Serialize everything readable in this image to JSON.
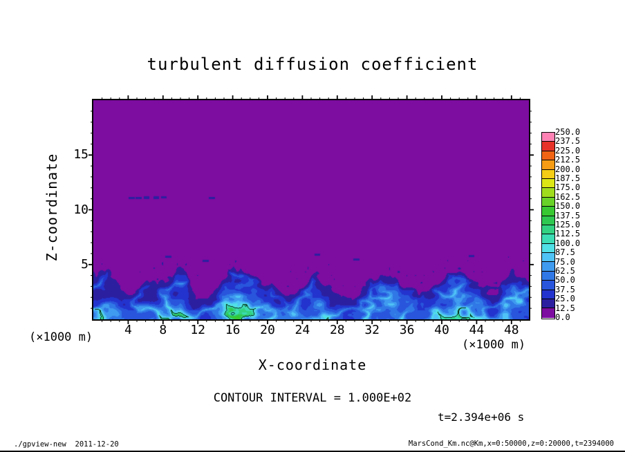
{
  "page": {
    "background": "#ffffff",
    "footer_left": "./gpview-new  2011-12-20",
    "footer_right": "MarsCond_Km.nc@Km,x=0:50000,z=0:20000,t=2394000"
  },
  "chart_data": {
    "type": "heatmap",
    "title": "turbulent diffusion coefficient",
    "xlabel": "X-coordinate",
    "ylabel": "Z-coordinate",
    "x_unit": "(×1000 m)",
    "z_unit": "(×1000 m)",
    "x_range": [
      0,
      50
    ],
    "z_range": [
      0,
      20
    ],
    "x_major_ticks": [
      4,
      8,
      12,
      16,
      20,
      24,
      28,
      32,
      36,
      40,
      44,
      48
    ],
    "z_major_ticks": [
      5,
      10,
      15
    ],
    "minor_tick_step": 1,
    "grid": false,
    "contour_interval": 100.0,
    "contour_interval_label": "CONTOUR INTERVAL = 1.000E+02",
    "time_label": "t=2.394e+06 s",
    "colorbar": {
      "position": "right",
      "levels": [
        0.0,
        12.5,
        25.0,
        37.5,
        50.0,
        62.5,
        75.0,
        87.5,
        100.0,
        112.5,
        125.0,
        137.5,
        150.0,
        162.5,
        175.0,
        187.5,
        200.0,
        212.5,
        225.0,
        237.5,
        250.0
      ],
      "tick_labels": [
        "250.0",
        "237.5",
        "225.0",
        "212.5",
        "200.0",
        "187.5",
        "175.0",
        "162.5",
        "150.0",
        "137.5",
        "125.0",
        "112.5",
        "100.0",
        "87.5",
        "75.0",
        "62.5",
        "50.0",
        "37.5",
        "25.0",
        "12.5",
        "0.0"
      ],
      "colors_low_to_high": [
        "#7d0ca0",
        "#2b1fa0",
        "#2333cd",
        "#2855dc",
        "#3078e6",
        "#3f9bef",
        "#4fc3f5",
        "#50e0e6",
        "#3cdcb4",
        "#32d282",
        "#2ec850",
        "#37c832",
        "#69d228",
        "#a0dc1e",
        "#dce614",
        "#f5cd14",
        "#f59b14",
        "#f06414",
        "#e63228",
        "#ff82b4"
      ]
    },
    "field": {
      "description": "Convective boundary-layer turbulence: diffusion coefficient ~0 (purple, 0-12.5 band) everywhere above a wavy boundary at z≈3-5 km; below the boundary, turbulent plumes with values mostly 25-110 (navy/blue body, cyan filament arcs, small green cores above 100 outlined by the 100-contour); a few isolated small specks near z≈11 km around x≈4-8 km and just above the layer top near z≈5-6 km.",
      "max_value": 138,
      "boundary_height_profile_km": {
        "x_step_km": 2,
        "values": [
          4.3,
          4.6,
          3.0,
          3.4,
          4.0,
          4.7,
          3.2,
          3.8,
          4.9,
          4.6,
          3.3,
          2.8,
          3.7,
          4.5,
          3.4,
          2.9,
          3.8,
          4.5,
          3.2,
          2.8,
          4.1,
          4.7,
          3.4,
          3.0,
          4.5
        ]
      },
      "plume_intensity_profile": {
        "x_step_km": 2,
        "values": [
          0.78,
          0.86,
          0.55,
          0.62,
          0.72,
          0.9,
          0.52,
          0.66,
          1.0,
          0.92,
          0.6,
          0.5,
          0.7,
          0.86,
          0.56,
          0.52,
          0.72,
          0.85,
          0.55,
          0.5,
          0.76,
          0.9,
          0.62,
          0.56,
          0.86
        ]
      },
      "specks": [
        {
          "x": 4.4,
          "z": 11.05
        },
        {
          "x": 5.2,
          "z": 11.05
        },
        {
          "x": 6.1,
          "z": 11.1
        },
        {
          "x": 7.2,
          "z": 11.1
        },
        {
          "x": 8.1,
          "z": 11.15
        },
        {
          "x": 13.6,
          "z": 11.05
        },
        {
          "x": 8.6,
          "z": 5.7
        },
        {
          "x": 12.9,
          "z": 5.35
        },
        {
          "x": 25.7,
          "z": 5.9
        },
        {
          "x": 30.2,
          "z": 5.45
        },
        {
          "x": 43.4,
          "z": 5.75
        }
      ]
    }
  }
}
